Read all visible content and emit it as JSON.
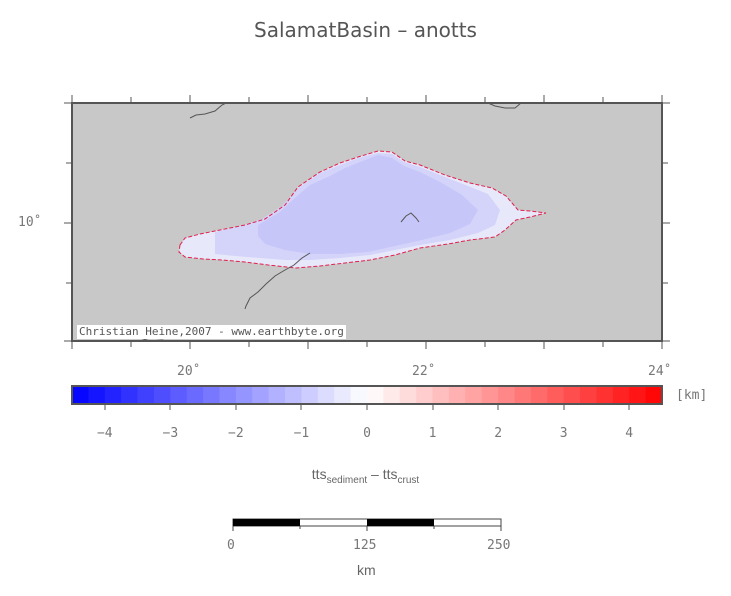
{
  "title": "SalamatBasin – anotts",
  "map": {
    "lat_labels": [
      "10˚"
    ],
    "lon_labels": [
      "20˚",
      "22˚",
      "24˚"
    ],
    "credit": "Christian Heine,2007 - www.earthbyte.org"
  },
  "colorbar": {
    "unit": "[km]",
    "ticks": [
      "−4",
      "−3",
      "−2",
      "−1",
      "0",
      "1",
      "2",
      "3",
      "4"
    ],
    "range": [
      -4.5,
      4.5
    ],
    "label_main_1": "tts",
    "label_sub_1": "sediment",
    "label_minus": " – ",
    "label_main_2": "tts",
    "label_sub_2": "crust"
  },
  "scalebar": {
    "ticks": [
      "0",
      "125",
      "250"
    ],
    "unit": "km"
  },
  "colors": {
    "land": "#c8c8c8",
    "basin_outer": "#e6e6fa",
    "basin_mid": "#d2d2fa",
    "basin_inner": "#c4c4f8",
    "outline": "#e0204a"
  }
}
